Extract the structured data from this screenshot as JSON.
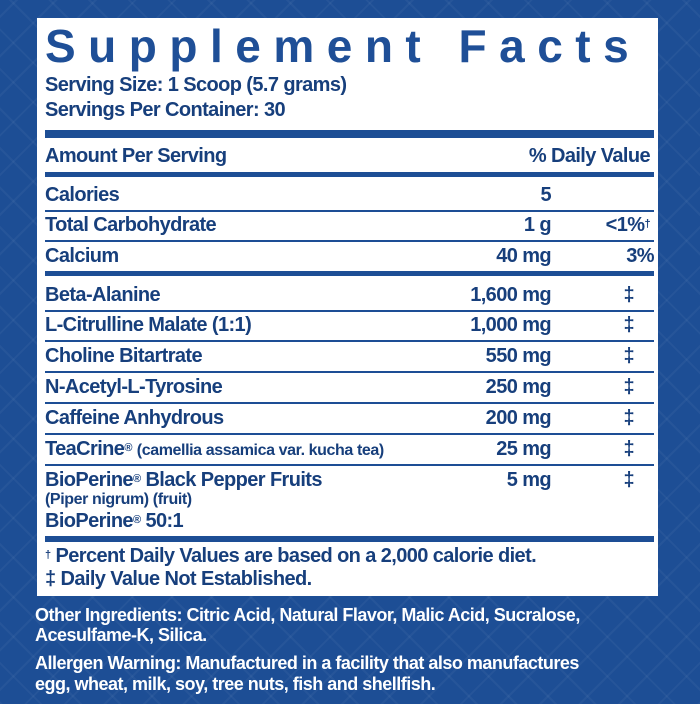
{
  "title": "Supplement Facts",
  "serving_size": "Serving Size: 1 Scoop (5.7 grams)",
  "servings_per_container": "Servings Per Container: 30",
  "header": {
    "amount": "Amount Per Serving",
    "dv": "% Daily Value"
  },
  "rows1": [
    {
      "name": "Calories",
      "amount": "5",
      "dv": ""
    },
    {
      "name": "Total Carbohydrate",
      "amount": "1 g",
      "dv": "<1%",
      "dv_mark": "†"
    },
    {
      "name": "Calcium",
      "amount": "40 mg",
      "dv": "3%"
    }
  ],
  "rows2": [
    {
      "name": "Beta-Alanine",
      "amount": "1,600 mg",
      "dv": "‡"
    },
    {
      "name": "L-Citrulline Malate (1:1)",
      "amount": "1,000 mg",
      "dv": "‡"
    },
    {
      "name": "Choline Bitartrate",
      "amount": "550 mg",
      "dv": "‡"
    },
    {
      "name": "N-Acetyl-L-Tyrosine",
      "amount": "250 mg",
      "dv": "‡"
    },
    {
      "name": "Caffeine Anhydrous",
      "amount": "200 mg",
      "dv": "‡"
    }
  ],
  "teacrine": {
    "name": "TeaCrine",
    "reg": "®",
    "desc": "(camellia assamica var. kucha tea)",
    "amount": "25 mg",
    "dv": "‡"
  },
  "bioperine": {
    "name": "BioPerine",
    "reg": "®",
    "name2": "Black Pepper Fruits",
    "sub": "(Piper nigrum) (fruit)",
    "line3": "BioPerine",
    "line3b": "50:1",
    "amount": "5 mg",
    "dv": "‡"
  },
  "footnotes": {
    "dagger_mark": "†",
    "dagger": "Percent Daily Values are based on a 2,000 calorie diet.",
    "ddagger_mark": "‡",
    "ddagger": "Daily Value Not Established."
  },
  "other_ingredients": [
    "Other Ingredients: Citric Acid, Natural Flavor, Malic Acid, Sucralose,",
    "Acesulfame-K, Silica."
  ],
  "allergen": [
    "Allergen Warning: Manufactured in a facility that also manufactures",
    "egg, wheat, milk, soy, tree nuts, fish and shellfish."
  ],
  "colors": {
    "background": "#1d4e95",
    "text": "#173f7c",
    "panel": "#ffffff"
  }
}
